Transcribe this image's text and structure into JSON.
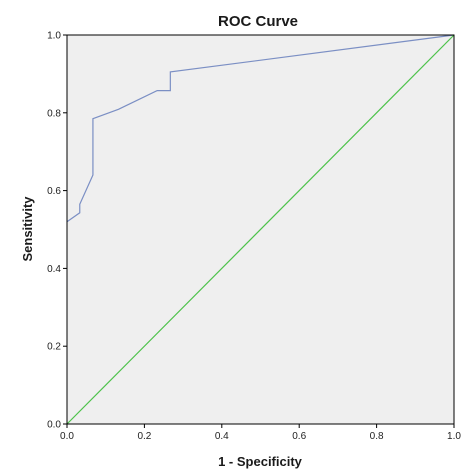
{
  "chart_data": {
    "type": "line",
    "title": "ROC Curve",
    "xlabel": "1 - Specificity",
    "ylabel": "Sensitivity",
    "xlim": [
      0.0,
      1.0
    ],
    "ylim": [
      0.0,
      1.0
    ],
    "x_ticks": [
      "0.0",
      "0.2",
      "0.4",
      "0.6",
      "0.8",
      "1.0"
    ],
    "y_ticks": [
      "0.0",
      "0.2",
      "0.4",
      "0.6",
      "0.8",
      "1.0"
    ],
    "grid": false,
    "legend": "none",
    "series": [
      {
        "color": "#7b8fc4",
        "points": [
          [
            0.0,
            0.52
          ],
          [
            0.033,
            0.543
          ],
          [
            0.033,
            0.565
          ],
          [
            0.067,
            0.64
          ],
          [
            0.067,
            0.785
          ],
          [
            0.133,
            0.809
          ],
          [
            0.233,
            0.857
          ],
          [
            0.267,
            0.857
          ],
          [
            0.267,
            0.905
          ],
          [
            1.0,
            1.0
          ]
        ]
      },
      {
        "color": "#4cc24a",
        "points": [
          [
            0.0,
            0.0
          ],
          [
            1.0,
            1.0
          ]
        ]
      }
    ],
    "background_color": "#efefef",
    "frame_color": "#000000"
  }
}
